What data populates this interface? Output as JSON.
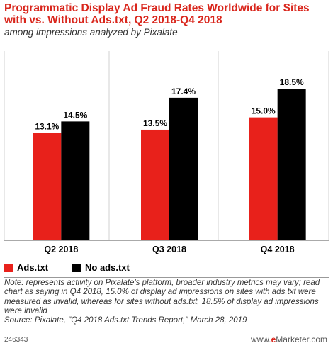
{
  "header": {
    "title": "Programmatic Display Ad Fraud Rates Worldwide for Sites with vs. Without Ads.txt, Q2 2018-Q4 2018",
    "subtitle": "among impressions analyzed by Pixalate"
  },
  "chart_data": {
    "type": "bar",
    "title": "Programmatic Display Ad Fraud Rates Worldwide for Sites with vs. Without Ads.txt, Q2 2018-Q4 2018",
    "subtitle": "among impressions analyzed by Pixalate",
    "categories": [
      "Q2 2018",
      "Q3 2018",
      "Q4 2018"
    ],
    "series": [
      {
        "name": "Ads.txt",
        "values": [
          13.1,
          13.5,
          15.0
        ],
        "labels": [
          "13.1%",
          "13.5%",
          "15.0%"
        ],
        "color": "#e8211b"
      },
      {
        "name": "No ads.txt",
        "values": [
          14.5,
          17.4,
          18.5
        ],
        "labels": [
          "14.5%",
          "17.4%",
          "18.5%"
        ],
        "color": "#000000"
      }
    ],
    "ylim": [
      0,
      23.1
    ],
    "grid": true,
    "legend": "bottom-left"
  },
  "footer": {
    "note": "Note: represents activity on Pixalate's platform, broader industry metrics may vary; read chart as saying in Q4 2018, 15.0% of display ad impressions on sites with ads.txt were measured as invalid, whereas for sites without ads.txt, 18.5% of display ad impressions were invalid",
    "source": "Source: Pixalate, \"Q4 2018 Ads.txt Trends Report,\" March 28, 2019",
    "chart_id": "246343",
    "brand_prefix": "www.",
    "brand_e": "e",
    "brand_name": "Marketer",
    "brand_suffix": ".com"
  }
}
